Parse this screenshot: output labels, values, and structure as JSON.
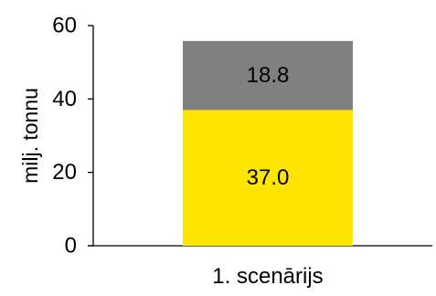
{
  "chart_data": {
    "type": "bar",
    "stacked": true,
    "categories": [
      "1. scenārijs"
    ],
    "series": [
      {
        "values": [
          37.0
        ],
        "labels": [
          "37.0"
        ],
        "color": "#FFE600"
      },
      {
        "values": [
          18.8
        ],
        "labels": [
          "18.8"
        ],
        "color": "#808080"
      }
    ],
    "ylabel": "milj. tonnu",
    "xlabel": "",
    "ylim": [
      0,
      60
    ],
    "yticks": [
      0,
      20,
      40,
      60
    ],
    "ytick_labels": [
      "0",
      "20",
      "40",
      "60"
    ],
    "grid": false,
    "legend": "none"
  }
}
